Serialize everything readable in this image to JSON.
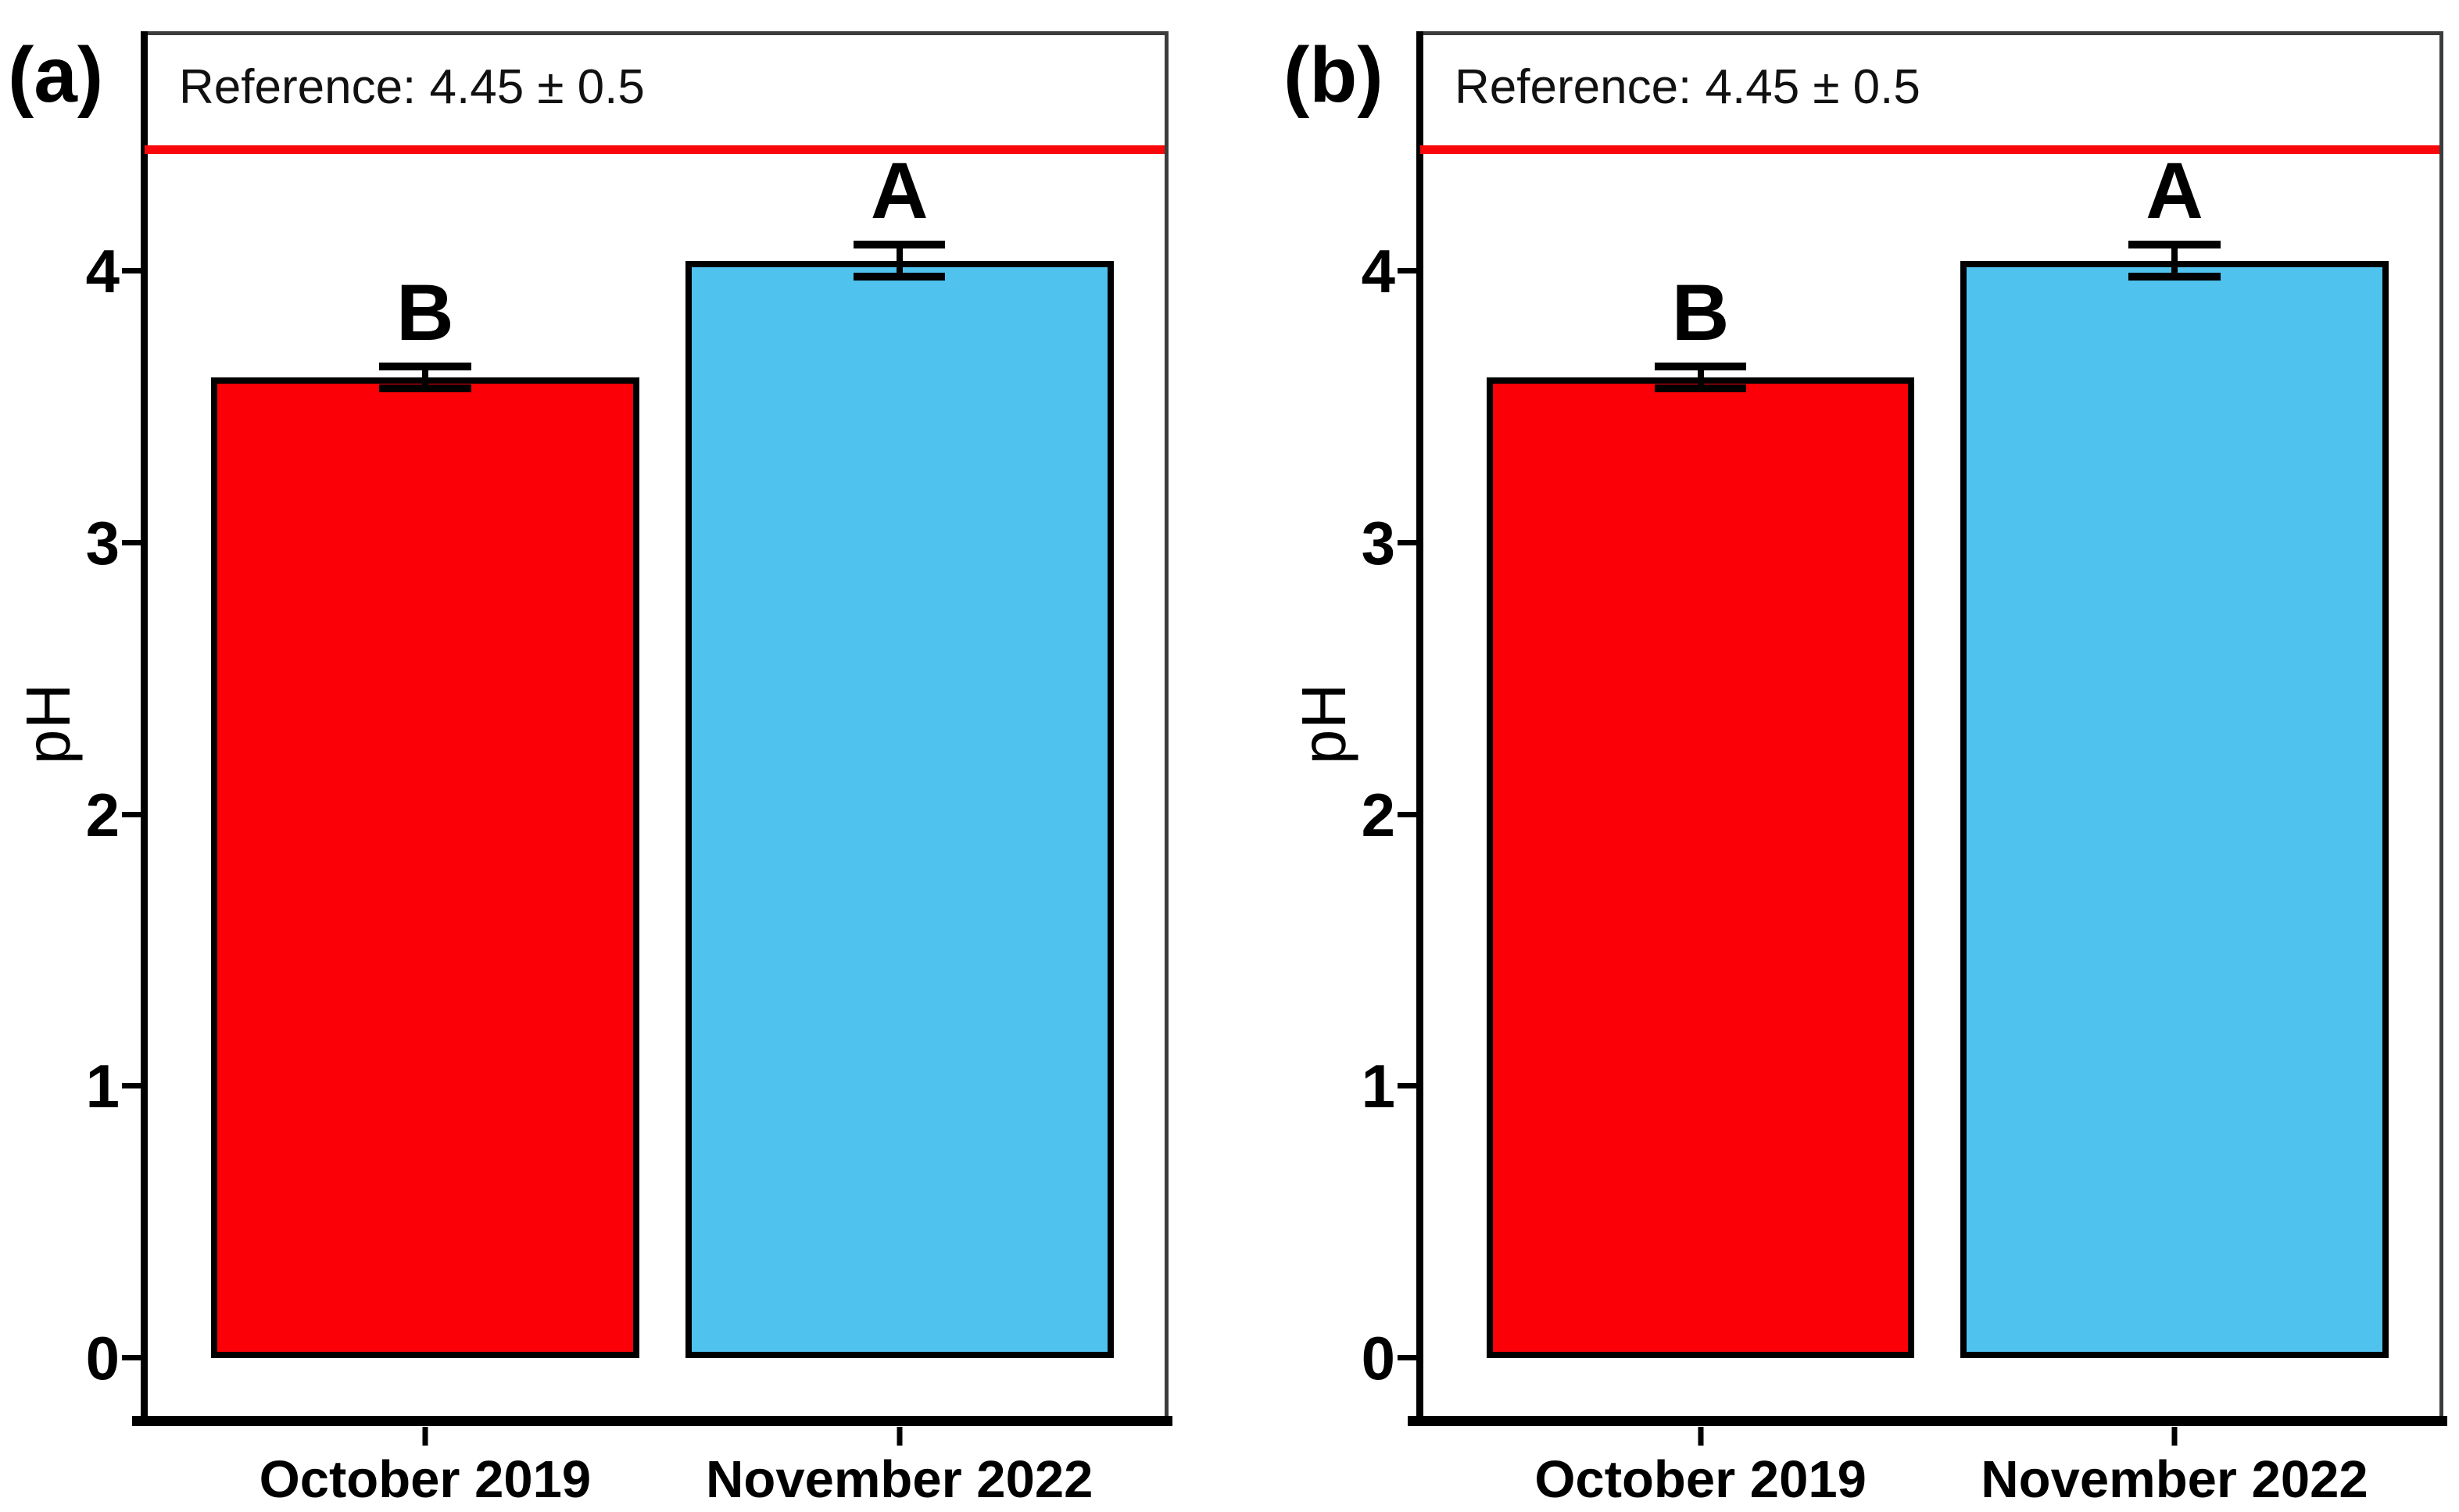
{
  "chart_data": [
    {
      "type": "bar",
      "panel_label": "(a)",
      "ylabel": "pH",
      "categories": [
        "October 2019",
        "November 2022"
      ],
      "values": [
        3.61,
        4.04
      ],
      "errors": [
        0.04,
        0.06
      ],
      "sig_letters": [
        "B",
        "A"
      ],
      "bar_colors": [
        "#fb0007",
        "#4fc2ee"
      ],
      "reference": {
        "label": "Reference: 4.45 ± 0.5",
        "value": 4.45,
        "color": "#f8080b"
      },
      "yticks": [
        0,
        1,
        2,
        3,
        4
      ],
      "ylim": [
        -0.23,
        4.87
      ],
      "grid": false,
      "legend": false
    },
    {
      "type": "bar",
      "panel_label": "(b)",
      "ylabel": "pH",
      "categories": [
        "October 2019",
        "November 2022"
      ],
      "values": [
        3.61,
        4.04
      ],
      "errors": [
        0.04,
        0.06
      ],
      "sig_letters": [
        "B",
        "A"
      ],
      "bar_colors": [
        "#fb0007",
        "#4fc2ee"
      ],
      "reference": {
        "label": "Reference: 4.45 ± 0.5",
        "value": 4.45,
        "color": "#f8080b"
      },
      "yticks": [
        0,
        1,
        2,
        3,
        4
      ],
      "ylim": [
        -0.23,
        4.87
      ],
      "grid": false,
      "legend": false
    }
  ]
}
